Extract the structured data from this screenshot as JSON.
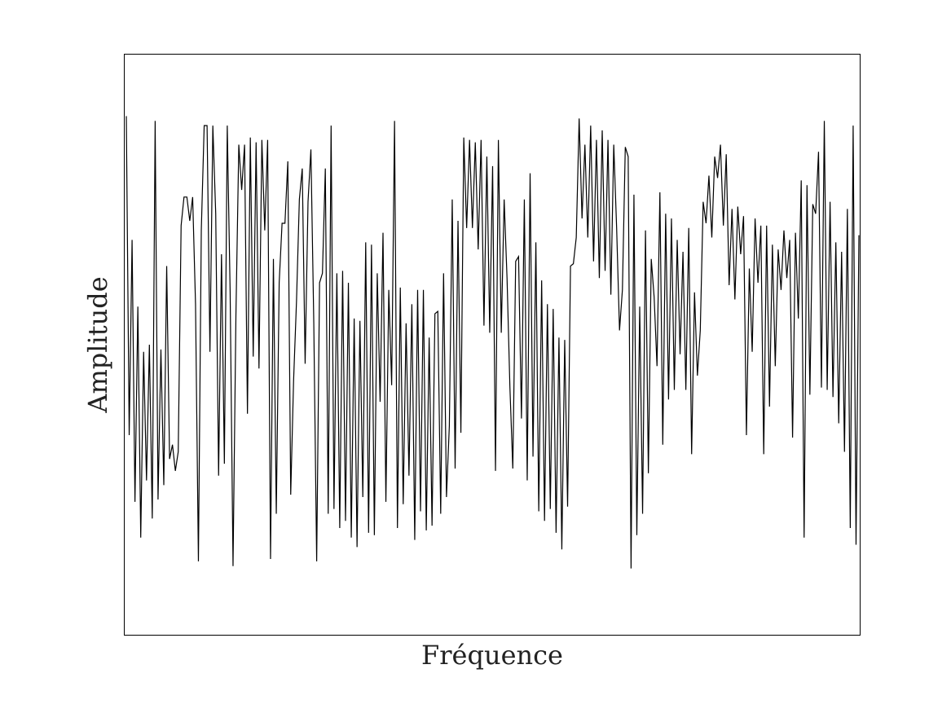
{
  "chart_data": {
    "type": "line",
    "title": "",
    "xlabel": "Fréquence",
    "ylabel": "Amplitude",
    "xticks": false,
    "yticks": false,
    "grid": false,
    "legend": "none",
    "xlim": [
      0,
      251
    ],
    "ylim": [
      -1.22,
      1.22
    ],
    "series": [
      {
        "color": "#000000",
        "y": [
          0.96,
          -0.38,
          0.44,
          -0.66,
          0.16,
          -0.81,
          -0.03,
          -0.57,
          0.0,
          -0.73,
          0.94,
          -0.65,
          -0.02,
          -0.59,
          0.33,
          -0.48,
          -0.42,
          -0.53,
          -0.45,
          0.5,
          0.62,
          0.62,
          0.52,
          0.62,
          0.17,
          -0.91,
          0.48,
          0.92,
          0.92,
          -0.03,
          0.92,
          0.55,
          -0.55,
          0.38,
          -0.5,
          0.92,
          0.22,
          -0.93,
          0.12,
          0.84,
          0.65,
          0.84,
          -0.29,
          0.87,
          -0.05,
          0.85,
          -0.1,
          0.86,
          0.48,
          0.86,
          -0.9,
          0.36,
          -0.71,
          0.26,
          0.51,
          0.51,
          0.77,
          -0.63,
          -0.15,
          0.18,
          0.61,
          0.74,
          -0.08,
          0.6,
          0.82,
          0.09,
          -0.91,
          0.26,
          0.3,
          0.74,
          -0.71,
          0.92,
          -0.69,
          0.3,
          -0.77,
          0.31,
          -0.74,
          0.26,
          -0.81,
          0.11,
          -0.85,
          0.1,
          -0.64,
          0.43,
          -0.79,
          0.42,
          -0.8,
          0.3,
          -0.24,
          0.47,
          -0.66,
          0.23,
          -0.17,
          0.94,
          -0.77,
          0.24,
          -0.67,
          0.09,
          -0.55,
          0.17,
          -0.82,
          0.23,
          -0.7,
          0.23,
          -0.78,
          0.03,
          -0.76,
          0.13,
          0.14,
          -0.71,
          0.3,
          -0.64,
          -0.34,
          0.61,
          -0.52,
          0.52,
          -0.37,
          0.87,
          0.49,
          0.86,
          0.49,
          0.85,
          0.4,
          0.86,
          0.08,
          0.79,
          0.05,
          0.75,
          -0.53,
          0.86,
          0.05,
          0.61,
          0.28,
          -0.18,
          -0.52,
          0.35,
          0.37,
          -0.31,
          0.61,
          -0.57,
          0.72,
          -0.47,
          0.43,
          -0.7,
          0.27,
          -0.74,
          0.17,
          -0.69,
          0.15,
          -0.79,
          0.03,
          -0.86,
          0.02,
          -0.68,
          0.33,
          0.34,
          0.45,
          0.95,
          0.53,
          0.84,
          0.45,
          0.92,
          0.35,
          0.86,
          0.28,
          0.9,
          0.31,
          0.86,
          0.21,
          0.84,
          0.49,
          0.06,
          0.23,
          0.83,
          0.79,
          -0.94,
          0.63,
          -0.8,
          0.16,
          -0.71,
          0.48,
          -0.54,
          0.36,
          0.2,
          -0.09,
          0.64,
          -0.42,
          0.55,
          -0.23,
          0.53,
          -0.19,
          0.44,
          -0.04,
          0.39,
          -0.19,
          0.49,
          -0.46,
          0.22,
          -0.13,
          0.06,
          0.6,
          0.51,
          0.71,
          0.45,
          0.79,
          0.7,
          0.84,
          0.5,
          0.8,
          0.25,
          0.57,
          0.19,
          0.58,
          0.38,
          0.54,
          -0.38,
          0.32,
          -0.03,
          0.53,
          0.26,
          0.5,
          -0.46,
          0.5,
          -0.26,
          0.42,
          -0.09,
          0.4,
          0.23,
          0.48,
          0.28,
          0.44,
          -0.39,
          0.47,
          0.11,
          0.69,
          -0.81,
          0.67,
          -0.21,
          0.59,
          0.55,
          0.81,
          -0.18,
          0.94,
          -0.19,
          0.6,
          -0.22,
          0.43,
          -0.33,
          0.39,
          -0.45,
          0.57,
          -0.77,
          0.92,
          -0.84,
          0.46
        ]
      }
    ]
  }
}
